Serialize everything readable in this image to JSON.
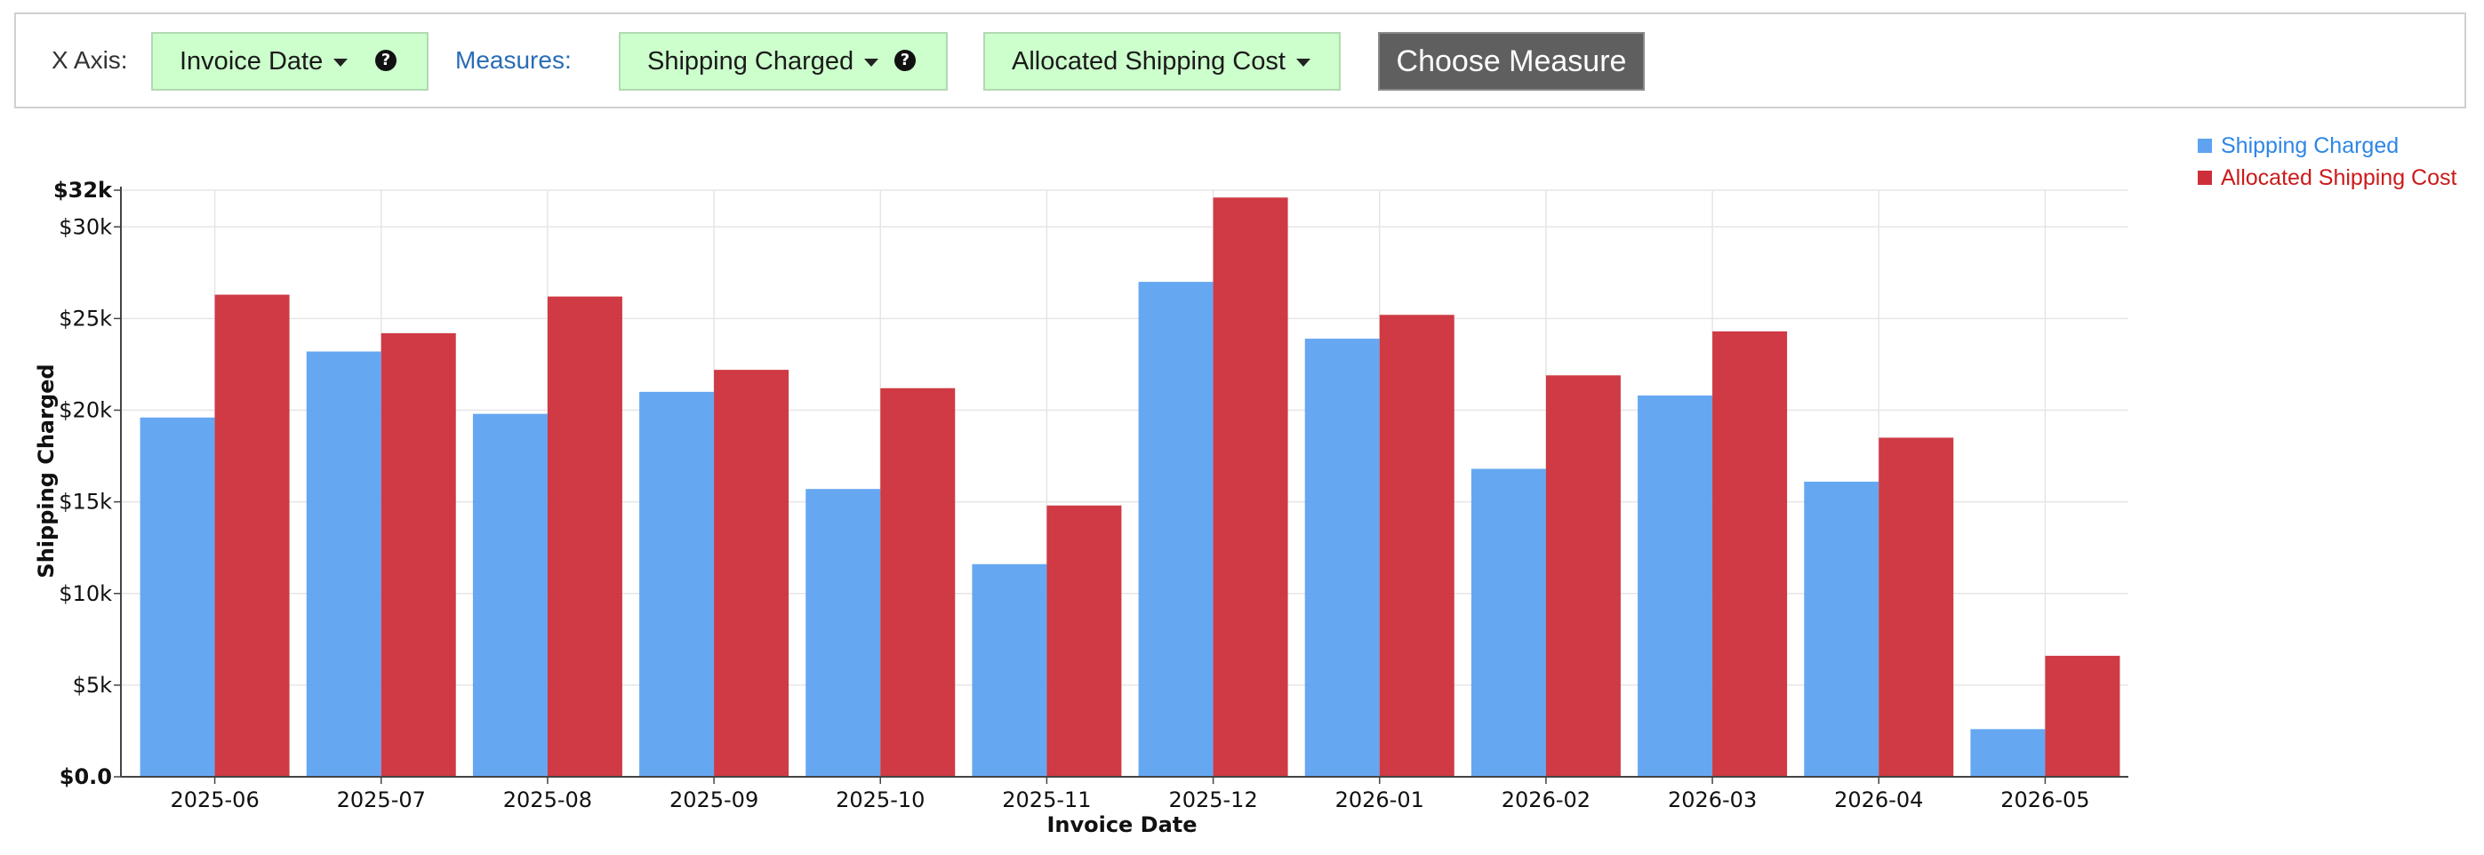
{
  "toolbar": {
    "xaxis_label": "X Axis:",
    "xaxis_value": "Invoice Date",
    "measures_label": "Measures:",
    "measure1": "Shipping Charged",
    "measure2": "Allocated Shipping Cost",
    "choose_button": "Choose Measure",
    "help_glyph": "?"
  },
  "colors": {
    "series1": "#5ea2f0",
    "series2": "#cc2f3a",
    "legend1_text": "#2f86e6",
    "legend2_text": "#cc1a1a",
    "toolbar_drop_bg": "#ccffcc",
    "button_bg": "#5f5f5f"
  },
  "chart_data": {
    "type": "bar",
    "xlabel": "Invoice Date",
    "ylabel": "Shipping Charged",
    "categories": [
      "2025-06",
      "2025-07",
      "2025-08",
      "2025-09",
      "2025-10",
      "2025-11",
      "2025-12",
      "2026-01",
      "2026-02",
      "2026-03",
      "2026-04",
      "2026-05"
    ],
    "series": [
      {
        "name": "Shipping Charged",
        "values": [
          19600,
          23200,
          19800,
          21000,
          15700,
          11600,
          27000,
          23900,
          16800,
          20800,
          16100,
          2600
        ]
      },
      {
        "name": "Allocated Shipping Cost",
        "values": [
          26300,
          24200,
          26200,
          22200,
          21200,
          14800,
          31600,
          25200,
          21900,
          24300,
          18500,
          6600
        ]
      }
    ],
    "ylim": [
      0,
      32000
    ],
    "yticks": [
      {
        "value": 0,
        "label": "$0.0",
        "bold": true
      },
      {
        "value": 5000,
        "label": "$5k",
        "bold": false
      },
      {
        "value": 10000,
        "label": "$10k",
        "bold": false
      },
      {
        "value": 15000,
        "label": "$15k",
        "bold": false
      },
      {
        "value": 20000,
        "label": "$20k",
        "bold": false
      },
      {
        "value": 25000,
        "label": "$25k",
        "bold": false
      },
      {
        "value": 30000,
        "label": "$30k",
        "bold": false
      },
      {
        "value": 32000,
        "label": "$32k",
        "bold": true
      }
    ],
    "grid": true,
    "legend_position": "top-right"
  }
}
